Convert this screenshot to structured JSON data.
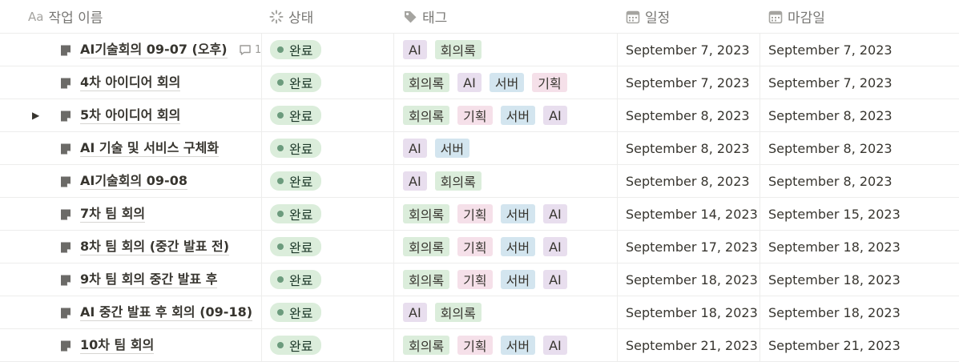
{
  "columns": {
    "name": "작업 이름",
    "name_icon_text": "Aa",
    "status": "상태",
    "tags": "태그",
    "date": "일정",
    "due": "마감일"
  },
  "tag_colors": {
    "AI": "#e8deee",
    "회의록": "#dbeddb",
    "서버": "#d3e5ef",
    "기획": "#f5e0e9"
  },
  "status_color": "#dbeddb",
  "rows": [
    {
      "title": "AI기술회의 09-07 (오후)",
      "comment_count": "1",
      "status": "완료",
      "tags": [
        "AI",
        "회의록"
      ],
      "date": "September 7, 2023",
      "due": "September 7, 2023",
      "expandable": false
    },
    {
      "title": "4차 아이디어 회의",
      "status": "완료",
      "tags": [
        "회의록",
        "AI",
        "서버",
        "기획"
      ],
      "date": "September 7, 2023",
      "due": "September 7, 2023",
      "expandable": false
    },
    {
      "title": "5차 아이디어 회의",
      "status": "완료",
      "tags": [
        "회의록",
        "기획",
        "서버",
        "AI"
      ],
      "date": "September 8, 2023",
      "due": "September 8, 2023",
      "expandable": true
    },
    {
      "title": "AI 기술 및 서비스 구체화",
      "status": "완료",
      "tags": [
        "AI",
        "서버"
      ],
      "date": "September 8, 2023",
      "due": "September 8, 2023",
      "expandable": false
    },
    {
      "title": "AI기술회의 09-08",
      "status": "완료",
      "tags": [
        "AI",
        "회의록"
      ],
      "date": "September 8, 2023",
      "due": "September 8, 2023",
      "expandable": false
    },
    {
      "title": "7차 팀 회의",
      "status": "완료",
      "tags": [
        "회의록",
        "기획",
        "서버",
        "AI"
      ],
      "date": "September 14, 2023",
      "due": "September 15, 2023",
      "expandable": false
    },
    {
      "title": "8차 팀 회의 (중간 발표 전)",
      "status": "완료",
      "tags": [
        "회의록",
        "기획",
        "서버",
        "AI"
      ],
      "date": "September 17, 2023",
      "due": "September 18, 2023",
      "expandable": false
    },
    {
      "title": "9차 팀 회의 중간 발표 후",
      "status": "완료",
      "tags": [
        "회의록",
        "기획",
        "서버",
        "AI"
      ],
      "date": "September 18, 2023",
      "due": "September 18, 2023",
      "expandable": false
    },
    {
      "title": "AI 중간 발표 후 회의 (09-18)",
      "status": "완료",
      "tags": [
        "AI",
        "회의록"
      ],
      "date": "September 18, 2023",
      "due": "September 18, 2023",
      "expandable": false
    },
    {
      "title": "10차 팀 회의",
      "status": "완료",
      "tags": [
        "회의록",
        "기획",
        "서버",
        "AI"
      ],
      "date": "September 21, 2023",
      "due": "September 21, 2023",
      "expandable": false
    }
  ]
}
